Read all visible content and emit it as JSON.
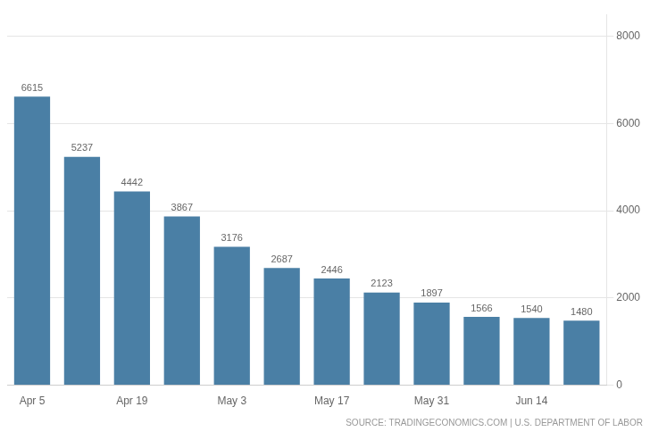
{
  "chart_data": {
    "type": "bar",
    "categories": [
      "Apr 5",
      null,
      "Apr 19",
      null,
      "May 3",
      null,
      "May 17",
      null,
      "May 31",
      null,
      "Jun 14",
      null
    ],
    "values": [
      6615,
      5237,
      4442,
      3867,
      3176,
      2687,
      2446,
      2123,
      1897,
      1566,
      1540,
      1480
    ],
    "color": "#4a7fa5",
    "ylim": [
      0,
      8500
    ],
    "yticks": [
      0,
      2000,
      4000,
      6000,
      8000
    ],
    "grid": true,
    "data_labels": true,
    "annotations": [
      "SOURCE: TRADINGECONOMICS.COM | U.S. DEPARTMENT OF LABOR"
    ]
  }
}
